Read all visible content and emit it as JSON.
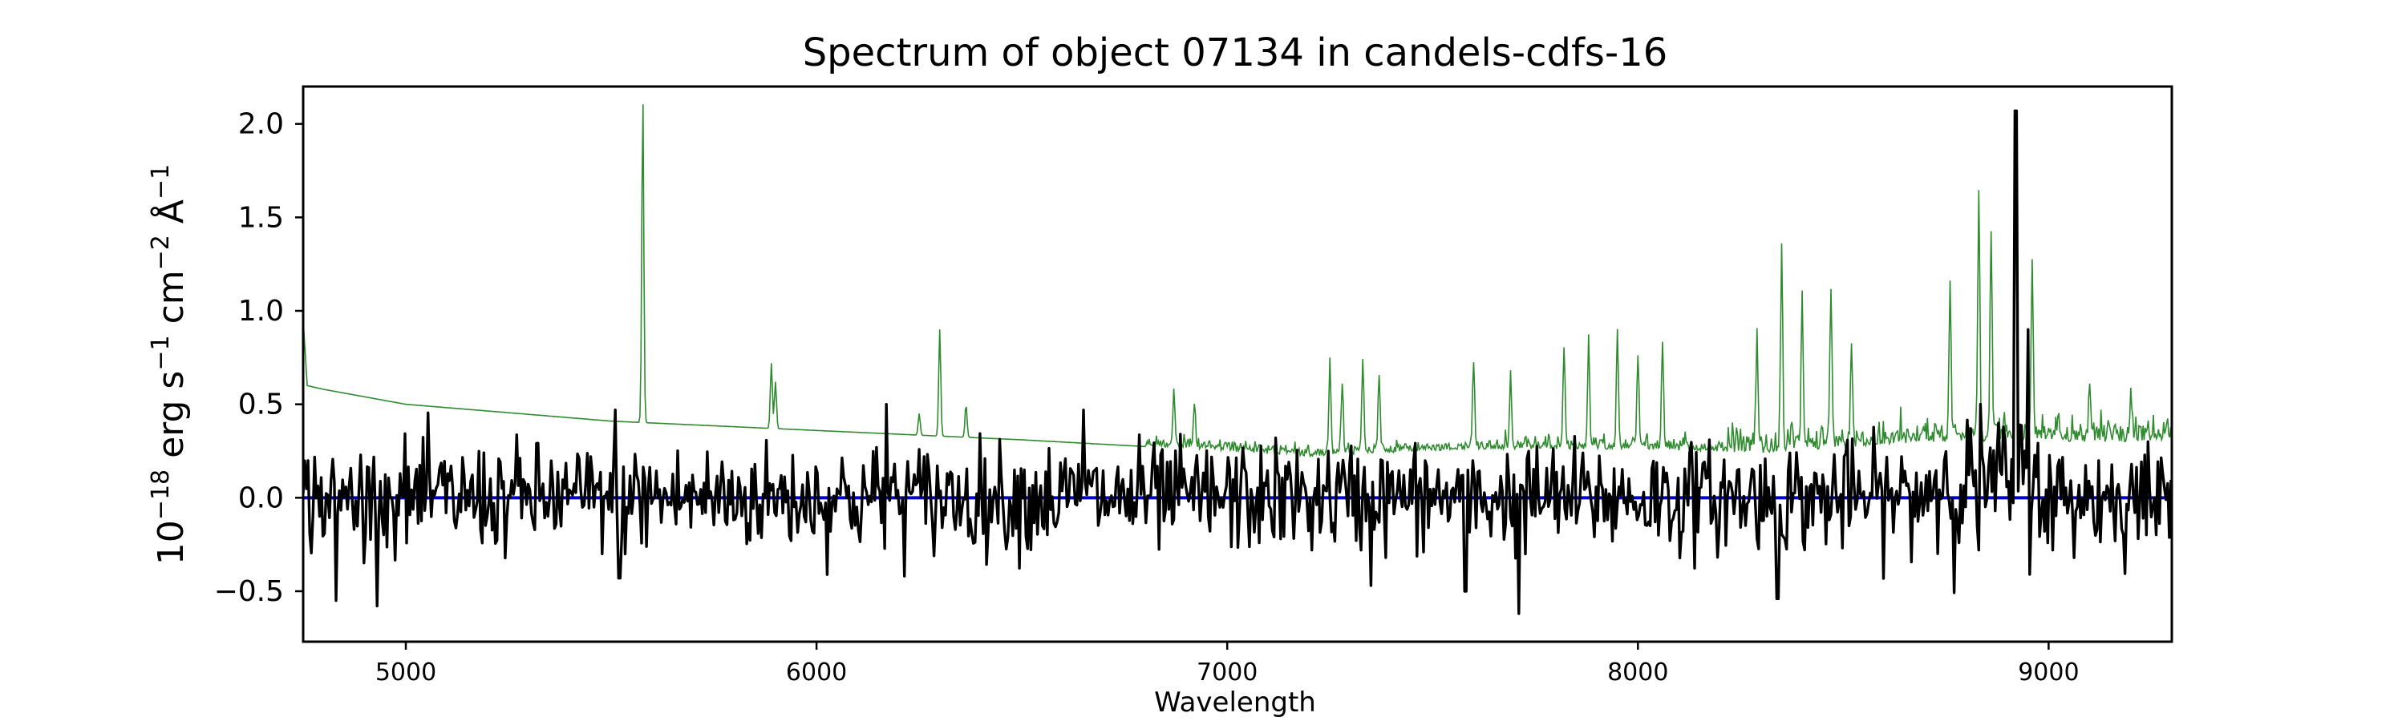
{
  "chart_data": {
    "type": "line",
    "title": "Spectrum of object 07134 in candels-cdfs-16",
    "xlabel": "Wavelength",
    "ylabel": {
      "base": "10",
      "exp1": "−18",
      "text1": " erg s",
      "exp2": "−1",
      "text2": " cm",
      "exp3": "−2",
      "text3": " Å",
      "exp4": "−1"
    },
    "xlim": [
      4750,
      9300
    ],
    "ylim": [
      -0.77,
      2.2
    ],
    "x_ticks": [
      5000,
      6000,
      7000,
      8000,
      9000
    ],
    "x_tick_labels": [
      "5000",
      "6000",
      "7000",
      "8000",
      "9000"
    ],
    "y_ticks": [
      -0.5,
      0.0,
      0.5,
      1.0,
      1.5,
      2.0
    ],
    "y_tick_labels": [
      "−0.5",
      "0.0",
      "0.5",
      "1.0",
      "1.5",
      "2.0"
    ],
    "grid": false,
    "series": [
      {
        "color": "#2e8b2e",
        "style": "thin",
        "continuum": [
          [
            4750,
            0.95
          ],
          [
            4760,
            0.6
          ],
          [
            4800,
            0.58
          ],
          [
            5000,
            0.5
          ],
          [
            5500,
            0.41
          ],
          [
            6000,
            0.36
          ],
          [
            6500,
            0.31
          ],
          [
            7000,
            0.25
          ],
          [
            7200,
            0.22
          ],
          [
            7600,
            0.26
          ],
          [
            8000,
            0.26
          ],
          [
            8300,
            0.24
          ],
          [
            8700,
            0.3
          ],
          [
            9000,
            0.3
          ],
          [
            9300,
            0.3
          ]
        ],
        "peaks": [
          [
            5577,
            2.14
          ],
          [
            5890,
            0.72
          ],
          [
            5900,
            0.62
          ],
          [
            6300,
            0.9
          ],
          [
            6364,
            0.5
          ],
          [
            6250,
            0.45
          ],
          [
            6870,
            0.55
          ],
          [
            6920,
            0.5
          ],
          [
            7250,
            0.7
          ],
          [
            7280,
            0.6
          ],
          [
            7330,
            0.7
          ],
          [
            7370,
            0.65
          ],
          [
            7600,
            0.7
          ],
          [
            7690,
            0.62
          ],
          [
            7820,
            0.8
          ],
          [
            7880,
            0.85
          ],
          [
            7950,
            0.88
          ],
          [
            8000,
            0.75
          ],
          [
            8060,
            0.82
          ],
          [
            8290,
            0.85
          ],
          [
            8350,
            1.25
          ],
          [
            8400,
            1.0
          ],
          [
            8470,
            1.1
          ],
          [
            8520,
            0.8
          ],
          [
            8760,
            1.1
          ],
          [
            8830,
            1.6
          ],
          [
            8860,
            1.4
          ],
          [
            8920,
            1.5
          ],
          [
            8960,
            1.2
          ],
          [
            9100,
            0.6
          ],
          [
            9200,
            0.5
          ]
        ]
      },
      {
        "color": "#000000",
        "style": "thick",
        "noise_sigma": 0.18,
        "features": [
          [
            4830,
            -0.55
          ],
          [
            5520,
            -0.43
          ],
          [
            5510,
            0.47
          ],
          [
            6170,
            0.5
          ],
          [
            6650,
            0.47
          ],
          [
            7350,
            -0.47
          ],
          [
            7580,
            -0.5
          ],
          [
            7710,
            -0.62
          ],
          [
            8340,
            -0.54
          ],
          [
            8830,
            -0.28
          ],
          [
            8920,
            2.07
          ],
          [
            8950,
            0.9
          ],
          [
            9010,
            -0.28
          ]
        ]
      },
      {
        "color": "#0000cc",
        "style": "flat",
        "y": 0.0
      }
    ]
  }
}
